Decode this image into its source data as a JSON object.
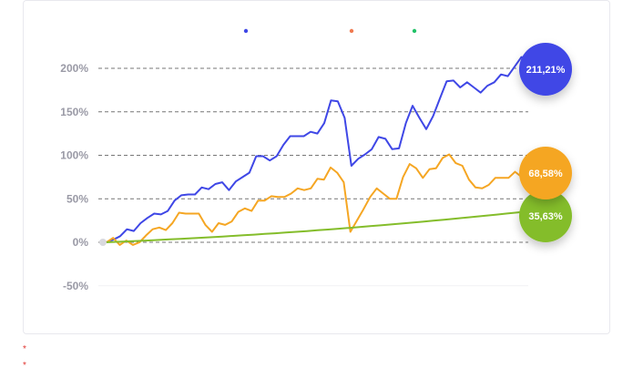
{
  "legend": {
    "items": [
      {
        "color": "#3f47e6"
      },
      {
        "color": "#f07a50"
      },
      {
        "color": "#22c268"
      }
    ]
  },
  "footnotes": [
    "*",
    "*"
  ],
  "chart_data": {
    "type": "line",
    "title": "",
    "xlabel": "",
    "ylabel": "",
    "ylim": [
      -50,
      200
    ],
    "yticks": [
      {
        "value": 200,
        "label": "200%"
      },
      {
        "value": 150,
        "label": "150%"
      },
      {
        "value": 100,
        "label": "100%"
      },
      {
        "value": 50,
        "label": "50%"
      },
      {
        "value": 0,
        "label": "0%"
      },
      {
        "value": -50,
        "label": "-50%"
      }
    ],
    "grid": "dashed horizontal",
    "series": [
      {
        "color": "#3f47e6",
        "end_label": "211,21%",
        "values": [
          0,
          3,
          7,
          15,
          13,
          22,
          28,
          33,
          32,
          36,
          48,
          54,
          55,
          55,
          63,
          61,
          67,
          69,
          60,
          70,
          75,
          80,
          99,
          99,
          94,
          99,
          112,
          122,
          122,
          122,
          127,
          125,
          137,
          163,
          162,
          143,
          88,
          96,
          101,
          107,
          121,
          119,
          107,
          108,
          137,
          157,
          143,
          130,
          145,
          165,
          185,
          186,
          178,
          184,
          178,
          172,
          180,
          184,
          193,
          191,
          202,
          213,
          211
        ]
      },
      {
        "color": "#f5a623",
        "end_label": "68,58%",
        "values": [
          0,
          5,
          -3,
          2,
          -3,
          0,
          8,
          15,
          17,
          14,
          22,
          34,
          33,
          33,
          33,
          20,
          12,
          22,
          20,
          24,
          35,
          39,
          36,
          48,
          48,
          53,
          52,
          52,
          56,
          62,
          60,
          62,
          73,
          72,
          86,
          80,
          69,
          12,
          25,
          38,
          52,
          62,
          56,
          50,
          50,
          75,
          90,
          85,
          74,
          84,
          85,
          97,
          101,
          91,
          88,
          72,
          63,
          62,
          66,
          74,
          74,
          74,
          81,
          75,
          69
        ]
      },
      {
        "color": "#84bd2b",
        "end_label": "35,63%",
        "type": "curve",
        "start": 0,
        "end": 35.63
      }
    ]
  }
}
